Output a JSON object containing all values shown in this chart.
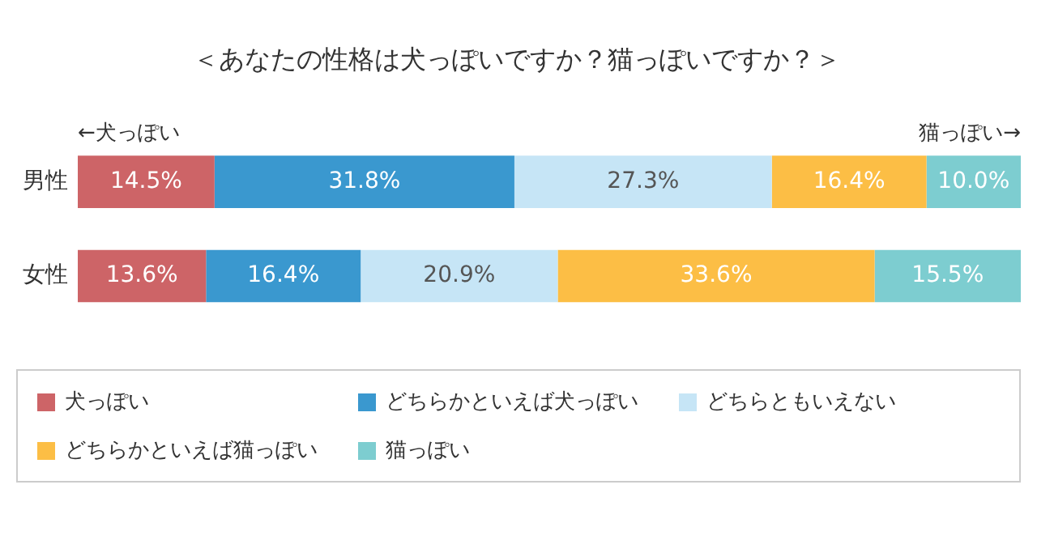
{
  "chart_data": {
    "type": "bar",
    "orientation": "horizontal",
    "stacked": true,
    "title": "＜あなたの性格は犬っぽいですか？猫っぽいですか？＞",
    "annotations": [
      "←犬っぽい",
      "猫っぽい→"
    ],
    "categories": [
      "男性",
      "女性"
    ],
    "xlim": [
      0,
      100
    ],
    "tick_labels": "y",
    "legend": "bottom",
    "series": [
      {
        "name": "犬っぽい",
        "color": "#cd6467",
        "values": [
          14.5,
          13.6
        ],
        "value_labels": [
          "14.5%",
          "13.6%"
        ]
      },
      {
        "name": "どちらかといえば犬っぽい",
        "color": "#3a98cf",
        "values": [
          31.8,
          16.4
        ],
        "value_labels": [
          "31.8%",
          "16.4%"
        ]
      },
      {
        "name": "どちらともいえない",
        "color": "#c6e5f6",
        "values": [
          27.3,
          20.9
        ],
        "value_labels": [
          "27.3%",
          "20.9%"
        ]
      },
      {
        "name": "どちらかといえば猫っぽい",
        "color": "#fcbe45",
        "values": [
          16.4,
          33.6
        ],
        "value_labels": [
          "16.4%",
          "33.6%"
        ]
      },
      {
        "name": "猫っぽい",
        "color": "#7dcdd0",
        "values": [
          10.0,
          15.5
        ],
        "value_labels": [
          "10.0%",
          "15.5%"
        ]
      }
    ]
  }
}
